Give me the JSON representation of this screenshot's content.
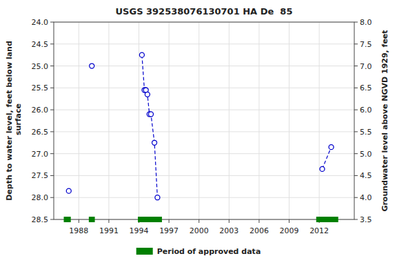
{
  "chart_data": {
    "type": "line",
    "title": "USGS 392538076130701 HA De  85",
    "ylabel": "Depth to water level, feet below land\n surface",
    "y2label": "Groundwater level above NGVD 1929, feet",
    "x": [
      1987.0,
      null,
      1989.3,
      null,
      1994.3,
      1994.55,
      1994.7,
      1994.85,
      1995.05,
      1995.2,
      1995.55,
      1995.85,
      null,
      2012.3,
      2013.2
    ],
    "series": [
      {
        "values": [
          27.85,
          null,
          25.0,
          null,
          24.75,
          25.55,
          25.55,
          25.65,
          26.1,
          26.1,
          26.75,
          28.0,
          null,
          27.35,
          26.85
        ],
        "color": "#0000cc",
        "marker": "circle",
        "line_style": "dashed"
      },
      {
        "name": "Period of approved data",
        "type": "range",
        "color": "#008000",
        "start": [
          1986.5,
          1989.0,
          1993.9,
          2011.7
        ],
        "end": [
          1987.2,
          1989.6,
          1996.3,
          2013.9
        ]
      }
    ],
    "xlim": [
      1985.5,
      2015.5
    ],
    "xticks": [
      1988,
      1991,
      1994,
      1997,
      2000,
      2003,
      2006,
      2009,
      2012
    ],
    "ylim": [
      28.5,
      24.0
    ],
    "yticks": [
      {
        "value": 24.0,
        "label": "24.0"
      },
      24.5,
      {
        "value": 25.0,
        "label": "25.0"
      },
      25.5,
      {
        "value": 26.0,
        "label": "26.0"
      },
      26.5,
      {
        "value": 27.0,
        "label": "27.0"
      },
      27.5,
      {
        "value": 28.0,
        "label": "28.0"
      },
      28.5
    ],
    "y2lim": [
      3.5,
      8.0
    ],
    "y2ticks": [
      3.5,
      {
        "value": 4.0,
        "label": "4.0"
      },
      4.5,
      {
        "value": 5.0,
        "label": "5.0"
      },
      5.5,
      {
        "value": 6.0,
        "label": "6.0"
      },
      6.5,
      {
        "value": 7.0,
        "label": "7.0"
      },
      7.5,
      {
        "value": 8.0,
        "label": "8.0"
      }
    ],
    "grid": true,
    "legend": "bottom"
  }
}
